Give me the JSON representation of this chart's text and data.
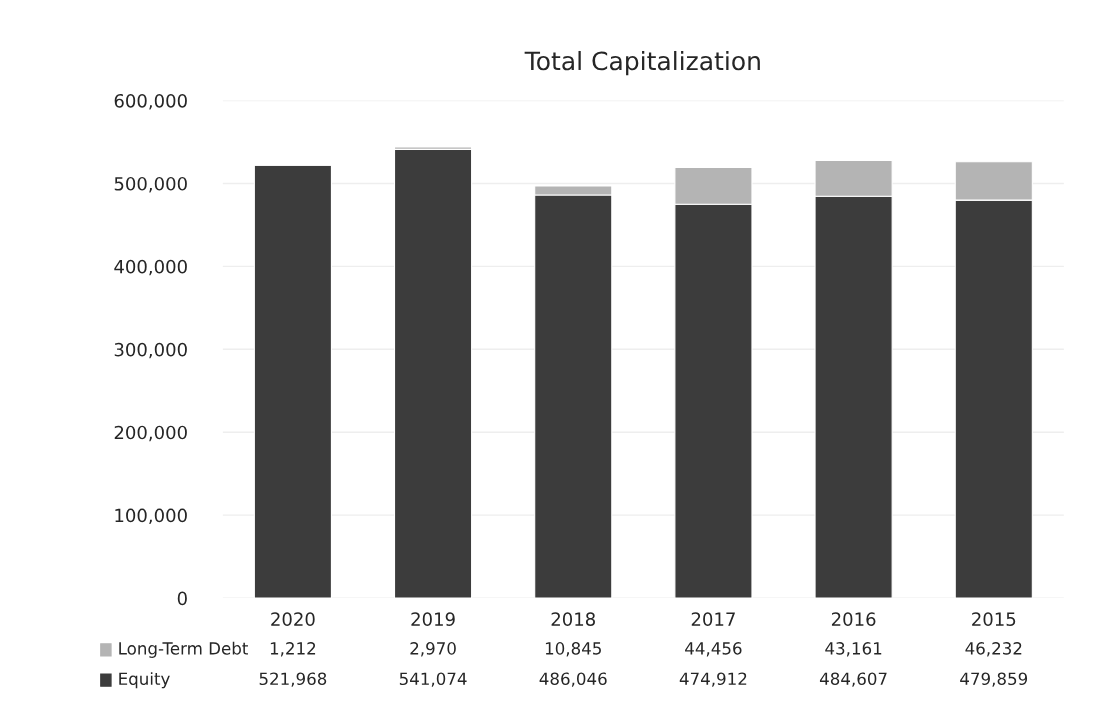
{
  "chart_data": {
    "type": "bar",
    "title": "Total Capitalization",
    "stacked": true,
    "categories": [
      "2020",
      "2019",
      "2018",
      "2017",
      "2016",
      "2015"
    ],
    "series": [
      {
        "name": "Equity",
        "color": "#3c3c3c",
        "values": [
          521968,
          541074,
          486046,
          474912,
          484607,
          479859
        ],
        "value_labels": [
          "521,968",
          "541,074",
          "486,046",
          "474,912",
          "484,607",
          "479,859"
        ]
      },
      {
        "name": "Long-Term Debt",
        "color": "#b4b4b4",
        "values": [
          1212,
          2970,
          10845,
          44456,
          43161,
          46232
        ],
        "value_labels": [
          "1,212",
          "2,970",
          "10,845",
          "44,456",
          "43,161",
          "46,232"
        ]
      }
    ],
    "ylim": [
      0,
      600000
    ],
    "yticks": [
      {
        "value": 0,
        "label": "0"
      },
      {
        "value": 100000,
        "label": "100,000"
      },
      {
        "value": 200000,
        "label": "200,000"
      },
      {
        "value": 300000,
        "label": "300,000"
      },
      {
        "value": 400000,
        "label": "400,000"
      },
      {
        "value": 500000,
        "label": "500,000"
      },
      {
        "value": 600000,
        "label": "600,000"
      }
    ],
    "grid": "y",
    "legend": "bottom"
  }
}
